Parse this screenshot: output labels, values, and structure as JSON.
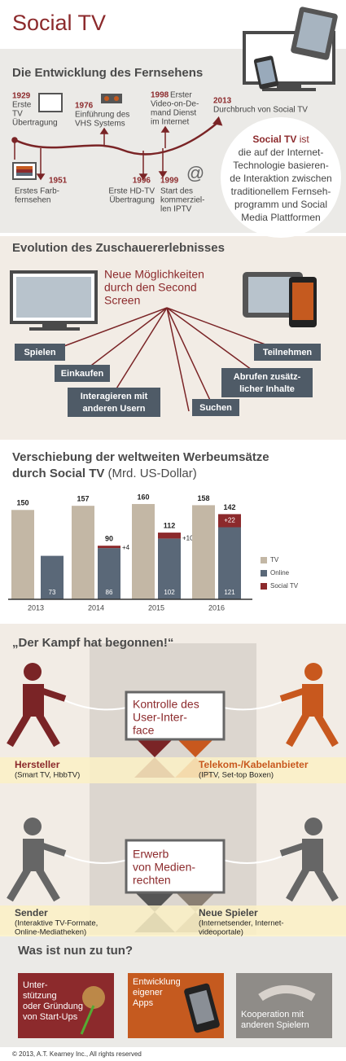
{
  "header": {
    "title": "Social TV"
  },
  "timeline": {
    "title": "Die Entwicklung des Fernsehens",
    "events": [
      {
        "year": "1929",
        "lines": [
          "Erste",
          "TV",
          "Übertragung"
        ]
      },
      {
        "year": "1976",
        "lines": [
          "Einführung des",
          "VHS Systems"
        ]
      },
      {
        "year": "1998",
        "lines": [
          "Erster",
          "Video-on-De-",
          "mand Dienst",
          "im Internet"
        ]
      },
      {
        "year": "2013",
        "lines": [
          "Durchbruch von Social TV"
        ]
      },
      {
        "year": "1951",
        "lines": [
          "Erstes Farb-",
          "fernsehen"
        ]
      },
      {
        "year": "1996",
        "lines": [
          "Erste HD-TV",
          "Übertragung"
        ]
      },
      {
        "year": "1999",
        "lines": [
          "Start des",
          "kommerziel-",
          "len IPTV"
        ]
      }
    ],
    "symbol": "@",
    "definition": {
      "lead": "Social TV",
      "lead_suffix": "ist",
      "lines": [
        "die auf der Internet-",
        "Technologie basieren-",
        "de Interaktion zwischen",
        "traditionellem Fernseh-",
        "programm und Social",
        "Media Plattformen"
      ]
    }
  },
  "evolution": {
    "title": "Evolution des Zuschauererlebnisses",
    "headline": [
      "Neue Möglichkeiten",
      "durch den Second",
      "Screen"
    ],
    "options": [
      [
        "Spielen"
      ],
      [
        "Einkaufen"
      ],
      [
        "Interagieren mit",
        "anderen Usern"
      ],
      [
        "Suchen"
      ],
      [
        "Abrufen zusätz-",
        "licher Inhalte"
      ],
      [
        "Teilnehmen"
      ]
    ]
  },
  "chart_data": {
    "type": "bar",
    "title_lines": [
      "Verschiebung der weltweiten Werbeumsätze",
      "durch Social TV"
    ],
    "unit": "(Mrd. US-Dollar)",
    "categories": [
      "2013",
      "2014",
      "2015",
      "2016"
    ],
    "series": [
      {
        "name": "TV",
        "color": "#c3b7a5",
        "values": [
          150,
          157,
          160,
          158
        ]
      },
      {
        "name": "Online",
        "color": "#5a6878",
        "values": [
          73,
          86,
          102,
          121
        ]
      },
      {
        "name": "Social TV",
        "color": "#8c2a2c",
        "values": [
          null,
          4,
          10,
          22
        ],
        "value_labels": [
          null,
          "+4",
          "+10",
          "+22"
        ]
      }
    ],
    "stack_totals": [
      null,
      90,
      112,
      142
    ],
    "ylim": [
      0,
      175
    ]
  },
  "battle": {
    "title": "„Der Kampf hat begonnen!“",
    "rounds": [
      {
        "prize": [
          "Kontrolle des",
          "User-Inter-",
          "face"
        ],
        "left": {
          "name": "Hersteller",
          "detail": [
            "(Smart TV, HbbTV)"
          ]
        },
        "right": {
          "name": "Telekom-/Kabelanbieter",
          "detail": [
            "(IPTV, Set-top Boxen)"
          ]
        }
      },
      {
        "prize": [
          "Erwerb",
          "von Medien-",
          "rechten"
        ],
        "left": {
          "name": "Sender",
          "detail": [
            "(Interaktive TV-Formate,",
            "Online-Mediatheken)"
          ]
        },
        "right": {
          "name": "Neue Spieler",
          "detail": [
            "(Internetsender, Internet-",
            "videoportale)"
          ]
        }
      }
    ]
  },
  "actions": {
    "title": "Was ist nun zu tun?",
    "cards": [
      [
        "Unter-",
        "stützung",
        "oder Gründung",
        "von Start-Ups"
      ],
      [
        "Entwicklung",
        "eigener",
        "Apps"
      ],
      [
        "Kooperation mit",
        "anderen Spielern"
      ]
    ]
  },
  "footer": "© 2013, A.T. Kearney Inc., All rights reserved"
}
